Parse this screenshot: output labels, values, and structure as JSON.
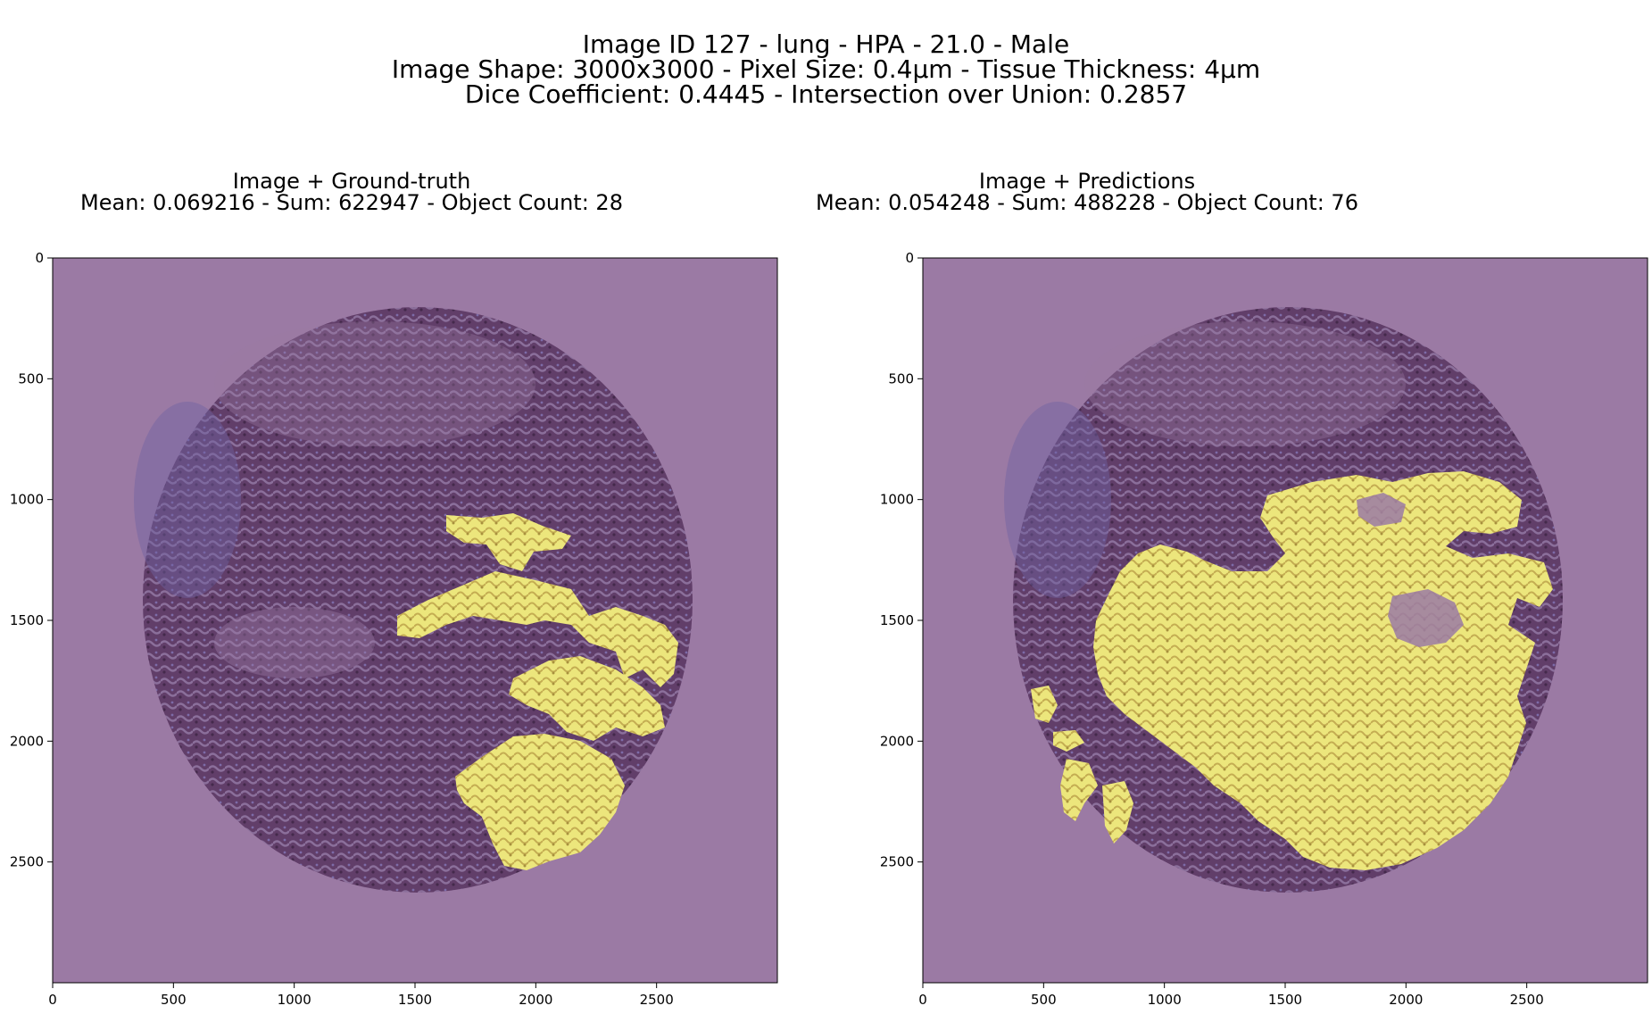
{
  "figure": {
    "title_lines": [
      "Image ID 127 - lung - HPA - 21.0 - Male",
      "Image Shape: 3000x3000 - Pixel Size: 0.4µm - Tissue Thickness: 4µm",
      "Dice Coefficient: 0.4445 - Intersection over Union: 0.2857"
    ]
  },
  "panels": [
    {
      "title": "Image + Ground-truth",
      "subtitle": "Mean: 0.069216 - Sum: 622947 - Object Count: 28"
    },
    {
      "title": "Image + Predictions",
      "subtitle": "Mean: 0.054248 - Sum: 488228 - Object Count: 76"
    }
  ],
  "axes": {
    "x_ticks": [
      "0",
      "500",
      "1000",
      "1500",
      "2000",
      "2500"
    ],
    "y_ticks": [
      "0",
      "500",
      "1000",
      "1500",
      "2000",
      "2500"
    ],
    "x_values": [
      0,
      500,
      1000,
      1500,
      2000,
      2500
    ],
    "y_values": [
      0,
      500,
      1000,
      1500,
      2000,
      2500
    ],
    "range": [
      0,
      3000
    ]
  },
  "colors": {
    "background": "#9b7aa4",
    "tissue": "#5e3b66",
    "tissue_blue": "#6f62a2",
    "mask": "#ece67c",
    "mask_texture": "#b8a048"
  }
}
